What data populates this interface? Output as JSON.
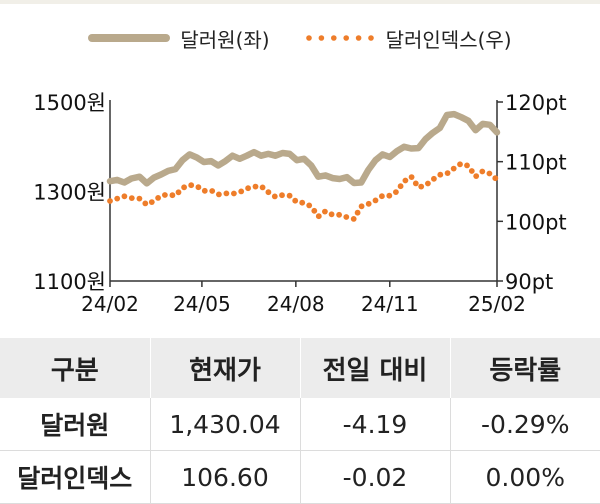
{
  "colors": {
    "krw": "#b9a98c",
    "dxy": "#ee7d2a",
    "axis": "#333333",
    "header_bg": "#ececec"
  },
  "legend": {
    "krw_label": "달러원(좌)",
    "dxy_label": "달러인덱스(우)"
  },
  "chart_data": {
    "type": "line",
    "x_ticks": [
      "24/02",
      "24/05",
      "24/08",
      "24/11",
      "25/02"
    ],
    "y_left_ticks": [
      "1500원",
      "1300원",
      "1100원"
    ],
    "y_right_ticks": [
      "120pt",
      "110pt",
      "100pt",
      "90pt"
    ],
    "ylim_left": [
      1100,
      1500
    ],
    "ylim_right": [
      90,
      120
    ],
    "grid": false,
    "legend_position": "top-center",
    "x_range": [
      "2024-02-01",
      "2025-02-14"
    ],
    "series": [
      {
        "name": "달러원(좌)",
        "axis": "left",
        "style": "solid",
        "points": [
          [
            "2024-02-01",
            1323
          ],
          [
            "2024-02-08",
            1326
          ],
          [
            "2024-02-15",
            1320
          ],
          [
            "2024-02-22",
            1329
          ],
          [
            "2024-03-01",
            1333
          ],
          [
            "2024-03-08",
            1318
          ],
          [
            "2024-03-15",
            1331
          ],
          [
            "2024-03-22",
            1338
          ],
          [
            "2024-03-29",
            1346
          ],
          [
            "2024-04-05",
            1350
          ],
          [
            "2024-04-12",
            1370
          ],
          [
            "2024-04-19",
            1383
          ],
          [
            "2024-04-26",
            1376
          ],
          [
            "2024-05-03",
            1366
          ],
          [
            "2024-05-10",
            1368
          ],
          [
            "2024-05-17",
            1358
          ],
          [
            "2024-05-24",
            1368
          ],
          [
            "2024-05-31",
            1380
          ],
          [
            "2024-06-07",
            1373
          ],
          [
            "2024-06-14",
            1380
          ],
          [
            "2024-06-21",
            1388
          ],
          [
            "2024-06-28",
            1380
          ],
          [
            "2024-07-05",
            1384
          ],
          [
            "2024-07-12",
            1380
          ],
          [
            "2024-07-19",
            1386
          ],
          [
            "2024-07-26",
            1384
          ],
          [
            "2024-08-02",
            1370
          ],
          [
            "2024-08-09",
            1373
          ],
          [
            "2024-08-16",
            1358
          ],
          [
            "2024-08-23",
            1333
          ],
          [
            "2024-08-30",
            1336
          ],
          [
            "2024-09-06",
            1330
          ],
          [
            "2024-09-13",
            1328
          ],
          [
            "2024-09-20",
            1332
          ],
          [
            "2024-09-27",
            1319
          ],
          [
            "2024-10-04",
            1320
          ],
          [
            "2024-10-11",
            1348
          ],
          [
            "2024-10-18",
            1370
          ],
          [
            "2024-10-25",
            1383
          ],
          [
            "2024-11-01",
            1377
          ],
          [
            "2024-11-08",
            1390
          ],
          [
            "2024-11-15",
            1400
          ],
          [
            "2024-11-22",
            1396
          ],
          [
            "2024-11-29",
            1397
          ],
          [
            "2024-12-06",
            1417
          ],
          [
            "2024-12-13",
            1431
          ],
          [
            "2024-12-20",
            1442
          ],
          [
            "2024-12-27",
            1471
          ],
          [
            "2025-01-03",
            1473
          ],
          [
            "2025-01-10",
            1466
          ],
          [
            "2025-01-17",
            1458
          ],
          [
            "2025-01-24",
            1437
          ],
          [
            "2025-01-31",
            1451
          ],
          [
            "2025-02-07",
            1449
          ],
          [
            "2025-02-14",
            1432
          ]
        ]
      },
      {
        "name": "달러인덱스(우)",
        "axis": "right",
        "style": "dotted",
        "points": [
          [
            "2024-02-01",
            103.4
          ],
          [
            "2024-02-08",
            103.8
          ],
          [
            "2024-02-15",
            104.2
          ],
          [
            "2024-02-22",
            103.9
          ],
          [
            "2024-03-01",
            103.8
          ],
          [
            "2024-03-08",
            102.8
          ],
          [
            "2024-03-15",
            103.4
          ],
          [
            "2024-03-22",
            104.3
          ],
          [
            "2024-03-29",
            104.5
          ],
          [
            "2024-04-05",
            104.3
          ],
          [
            "2024-04-12",
            105.6
          ],
          [
            "2024-04-19",
            106.1
          ],
          [
            "2024-04-26",
            105.9
          ],
          [
            "2024-05-03",
            105.1
          ],
          [
            "2024-05-10",
            105.2
          ],
          [
            "2024-05-17",
            104.5
          ],
          [
            "2024-05-24",
            104.7
          ],
          [
            "2024-05-31",
            104.6
          ],
          [
            "2024-06-07",
            104.9
          ],
          [
            "2024-06-14",
            105.5
          ],
          [
            "2024-06-21",
            105.8
          ],
          [
            "2024-06-28",
            105.9
          ],
          [
            "2024-07-05",
            104.9
          ],
          [
            "2024-07-12",
            104.1
          ],
          [
            "2024-07-19",
            104.4
          ],
          [
            "2024-07-26",
            104.3
          ],
          [
            "2024-08-02",
            103.2
          ],
          [
            "2024-08-09",
            103.1
          ],
          [
            "2024-08-16",
            102.5
          ],
          [
            "2024-08-23",
            100.8
          ],
          [
            "2024-08-30",
            101.7
          ],
          [
            "2024-09-06",
            101.1
          ],
          [
            "2024-09-13",
            101.1
          ],
          [
            "2024-09-20",
            100.7
          ],
          [
            "2024-09-27",
            100.4
          ],
          [
            "2024-10-04",
            102.5
          ],
          [
            "2024-10-11",
            102.9
          ],
          [
            "2024-10-18",
            103.5
          ],
          [
            "2024-10-25",
            104.3
          ],
          [
            "2024-11-01",
            104.3
          ],
          [
            "2024-11-08",
            105.0
          ],
          [
            "2024-11-15",
            106.7
          ],
          [
            "2024-11-22",
            107.5
          ],
          [
            "2024-11-29",
            105.7
          ],
          [
            "2024-12-06",
            106.0
          ],
          [
            "2024-12-13",
            107.0
          ],
          [
            "2024-12-20",
            107.8
          ],
          [
            "2024-12-27",
            108.0
          ],
          [
            "2025-01-03",
            108.9
          ],
          [
            "2025-01-10",
            109.7
          ],
          [
            "2025-01-17",
            109.3
          ],
          [
            "2025-01-24",
            107.5
          ],
          [
            "2025-01-31",
            108.4
          ],
          [
            "2025-02-07",
            108.0
          ],
          [
            "2025-02-14",
            107.0
          ]
        ]
      }
    ]
  },
  "table": {
    "headers": [
      "구분",
      "현재가",
      "전일 대비",
      "등락률"
    ],
    "rows": [
      [
        "달러원",
        "1,430.04",
        "-4.19",
        "-0.29%"
      ],
      [
        "달러인덱스",
        "106.60",
        "-0.02",
        "0.00%"
      ]
    ]
  }
}
